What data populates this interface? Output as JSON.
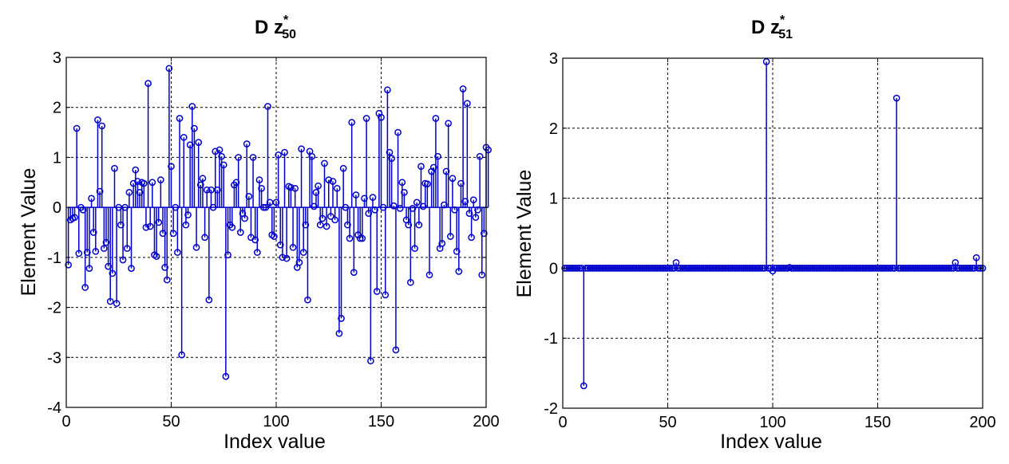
{
  "chart_data": [
    {
      "type": "stem",
      "title": {
        "prefix": "D z",
        "sup": "*",
        "sub": "50"
      },
      "xlabel": "Index value",
      "ylabel": "Element Value",
      "xlim": [
        0,
        200
      ],
      "ylim": [
        -4,
        3
      ],
      "xticks": [
        0,
        50,
        100,
        150,
        200
      ],
      "yticks": [
        -4,
        -3,
        -2,
        -1,
        0,
        1,
        2,
        3
      ],
      "grid": true,
      "color": "#0000cc",
      "series": [
        {
          "values": [
            -1.15,
            -0.25,
            -0.22,
            -0.2,
            1.58,
            -0.92,
            0,
            -0.05,
            -1.6,
            -0.9,
            -1.22,
            0.18,
            -0.5,
            -0.88,
            1.75,
            0.32,
            1.63,
            -0.82,
            -0.7,
            -1.18,
            -1.88,
            -1.32,
            0.78,
            -1.92,
            0,
            -0.35,
            -1.05,
            0,
            -0.82,
            0.3,
            -1.22,
            0.48,
            0.75,
            0.52,
            0.3,
            0.5,
            0.48,
            -0.4,
            2.48,
            -0.38,
            0.5,
            -0.95,
            -0.98,
            -0.3,
            0.55,
            -0.52,
            -1.2,
            -1.45,
            2.78,
            0.82,
            -0.52,
            0,
            -0.9,
            1.78,
            -2.95,
            1.4,
            -0.35,
            -0.15,
            1.25,
            2.02,
            1.58,
            -0.8,
            1.3,
            0.45,
            0.58,
            -0.6,
            0.35,
            -1.85,
            0.35,
            0,
            1.12,
            0.35,
            1.15,
            1.02,
            0.85,
            -3.38,
            -0.95,
            -0.35,
            -0.4,
            0.45,
            0.5,
            1.0,
            -0.5,
            -0.12,
            -0.22,
            1.27,
            0.22,
            -0.6,
            1.0,
            -0.65,
            -0.9,
            0.55,
            0.38,
            0,
            0,
            2.02,
            0.1,
            -0.55,
            -0.58,
            0.1,
            1.05,
            -0.75,
            -1.0,
            1.1,
            -1.02,
            0.42,
            0.4,
            -0.8,
            0.38,
            -1.2,
            -1.1,
            1.17,
            -0.9,
            -0.35,
            -1.85,
            1.12,
            1.02,
            0.02,
            0.3,
            0.43,
            -0.35,
            -0.22,
            0.88,
            -0.38,
            0.55,
            -0.18,
            0.52,
            -0.25,
            0.38,
            -2.52,
            -2.22,
            0.78,
            0,
            -0.35,
            -0.62,
            1.7,
            -1.3,
            0.25,
            -0.55,
            -0.62,
            -0.62,
            0.18,
            1.78,
            -0.12,
            -3.07,
            0.2,
            -0.05,
            -1.68,
            1.88,
            1.8,
            0,
            -1.75,
            2.35,
            1.1,
            0.98,
            0.03,
            -2.85,
            1.5,
            -0.02,
            0.5,
            0.3,
            -0.25,
            -0.35,
            -1.5,
            -0.02,
            -0.82,
            0.1,
            -0.35,
            0.82,
            0.02,
            0.48,
            0.47,
            -1.35,
            0.72,
            0.8,
            1.78,
            1.02,
            -0.82,
            -0.72,
            0.05,
            0.72,
            1.68,
            -0.58,
            0.58,
            -0.05,
            -0.88,
            -1.28,
            0.48,
            2.37,
            0.12,
            2.08,
            -0.12,
            -0.6,
            0.15,
            -0.2,
            -0.05,
            1.02,
            -1.35,
            -0.52,
            1.2,
            1.15
          ]
        }
      ]
    },
    {
      "type": "stem",
      "title": {
        "prefix": "D z",
        "sup": "*",
        "sub": "51"
      },
      "xlabel": "Index value",
      "ylabel": "Element Value",
      "xlim": [
        0,
        200
      ],
      "ylim": [
        -2,
        3
      ],
      "xticks": [
        0,
        50,
        100,
        150,
        200
      ],
      "yticks": [
        -2,
        -1,
        0,
        1,
        2,
        3
      ],
      "grid": true,
      "color": "#0000cc",
      "series": [
        {
          "n": 200,
          "default": 0,
          "nonzero": [
            [
              10,
              -1.68
            ],
            [
              54,
              0.08
            ],
            [
              97,
              2.95
            ],
            [
              100,
              -0.04
            ],
            [
              108,
              0.01
            ],
            [
              159,
              2.43
            ],
            [
              187,
              0.08
            ],
            [
              197,
              0.15
            ]
          ]
        }
      ]
    }
  ]
}
